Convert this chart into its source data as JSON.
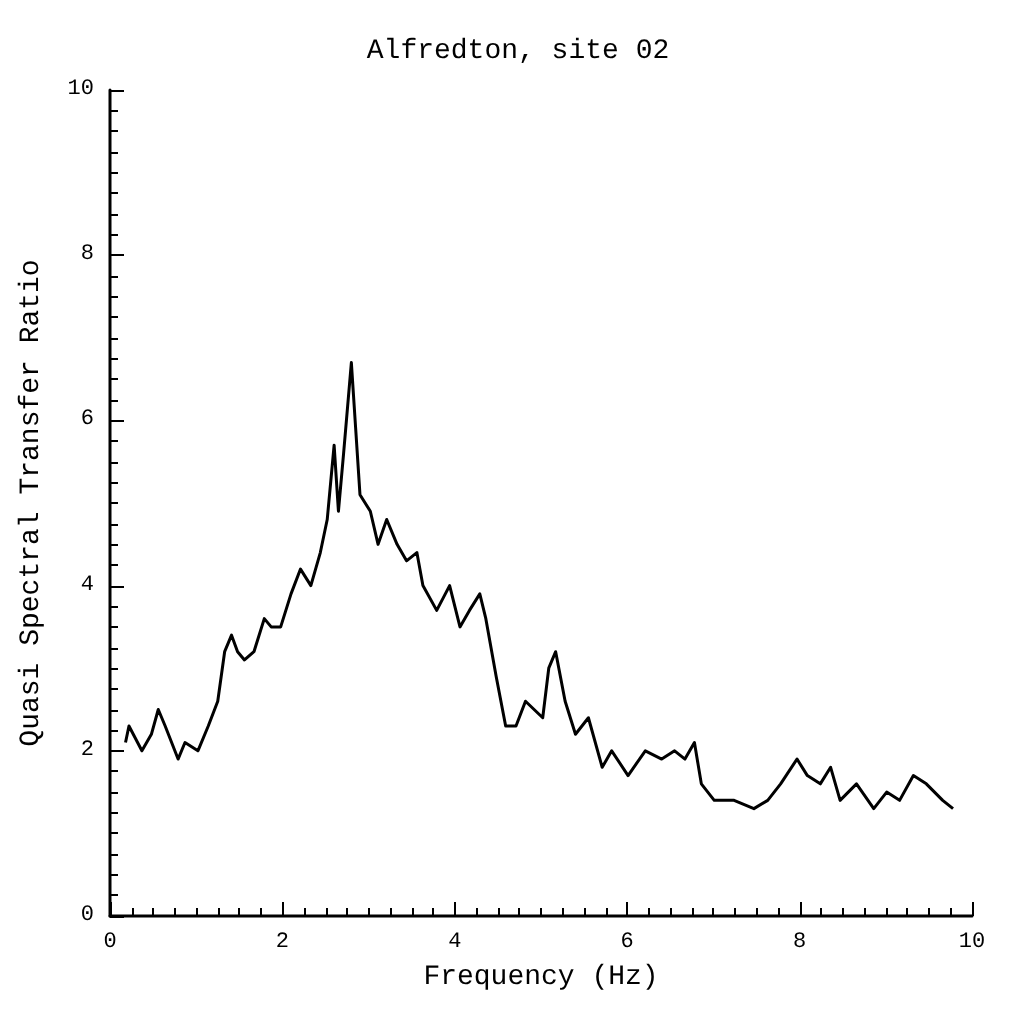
{
  "chart_data": {
    "type": "line",
    "title": "Alfredton, site 02",
    "xlabel": "Frequency (Hz)",
    "ylabel": "Quasi Spectral Transfer Ratio",
    "xlim": [
      0,
      10
    ],
    "xticks": [
      0,
      2,
      4,
      6,
      8,
      10
    ],
    "ylim": [
      0,
      10
    ],
    "yticks": [
      0,
      2,
      4,
      6,
      8,
      10
    ],
    "grid": false,
    "marker": "none",
    "line_style": "solid",
    "series": [
      {
        "color": "#000000",
        "x": [
          0.18,
          0.22,
          0.37,
          0.48,
          0.56,
          0.64,
          0.79,
          0.87,
          1.02,
          1.14,
          1.25,
          1.33,
          1.41,
          1.48,
          1.56,
          1.67,
          1.79,
          1.87,
          1.98,
          2.1,
          2.21,
          2.33,
          2.44,
          2.52,
          2.6,
          2.65,
          2.71,
          2.8,
          2.85,
          2.9,
          3.02,
          3.11,
          3.21,
          3.33,
          3.44,
          3.56,
          3.63,
          3.79,
          3.94,
          4.06,
          4.17,
          4.29,
          4.36,
          4.48,
          4.59,
          4.71,
          4.82,
          5.02,
          5.09,
          5.17,
          5.28,
          5.4,
          5.55,
          5.71,
          5.82,
          6.01,
          6.21,
          6.4,
          6.55,
          6.67,
          6.78,
          6.86,
          7.01,
          7.24,
          7.47,
          7.63,
          7.78,
          7.97,
          8.09,
          8.24,
          8.36,
          8.47,
          8.66,
          8.86,
          9.01,
          9.16,
          9.32,
          9.47,
          9.66,
          9.78
        ],
        "values": [
          2.1,
          2.3,
          2.0,
          2.2,
          2.5,
          2.3,
          1.9,
          2.1,
          2.0,
          2.3,
          2.6,
          3.2,
          3.4,
          3.2,
          3.1,
          3.2,
          3.6,
          3.5,
          3.5,
          3.9,
          4.2,
          4.0,
          4.4,
          4.8,
          5.7,
          4.9,
          5.6,
          6.7,
          5.9,
          5.1,
          4.9,
          4.5,
          4.8,
          4.5,
          4.3,
          4.4,
          4.0,
          3.7,
          4.0,
          3.5,
          3.7,
          3.9,
          3.6,
          2.9,
          2.3,
          2.3,
          2.6,
          2.4,
          3.0,
          3.2,
          2.6,
          2.2,
          2.4,
          1.8,
          2.0,
          1.7,
          2.0,
          1.9,
          2.0,
          1.9,
          2.1,
          1.6,
          1.4,
          1.4,
          1.3,
          1.4,
          1.6,
          1.9,
          1.7,
          1.6,
          1.8,
          1.4,
          1.6,
          1.3,
          1.5,
          1.4,
          1.7,
          1.6,
          1.4,
          1.3
        ]
      }
    ]
  }
}
